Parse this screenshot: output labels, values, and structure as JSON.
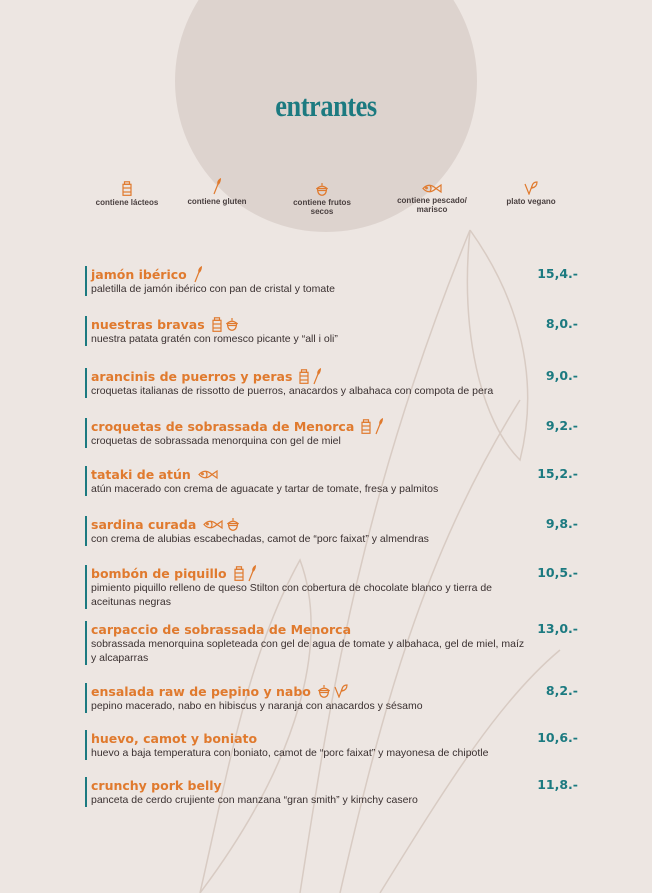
{
  "title": "entrantes",
  "colors": {
    "accent": "#e07a2e",
    "heading": "#1c7a80",
    "background": "#ede6e2"
  },
  "legend": [
    {
      "icon": "milk",
      "label": "contiene lácteos"
    },
    {
      "icon": "gluten",
      "label": "contiene gluten"
    },
    {
      "icon": "nuts",
      "label": "contiene frutos secos"
    },
    {
      "icon": "fish",
      "label": "contiene pescado/ marisco"
    },
    {
      "icon": "vegan",
      "label": "plato vegano"
    }
  ],
  "items": [
    {
      "name": "jamón ibérico",
      "icons": [
        "gluten"
      ],
      "price": "15,4.-",
      "desc": "paletilla de jamón ibérico con pan de cristal y tomate"
    },
    {
      "name": "nuestras bravas",
      "icons": [
        "milk",
        "nuts"
      ],
      "price": "8,0.-",
      "desc": "nuestra patata gratén con romesco picante y “all i oli”"
    },
    {
      "name": "arancinis de puerros y peras",
      "icons": [
        "milk",
        "gluten"
      ],
      "price": "9,0.-",
      "desc": "croquetas italianas de rissotto de puerros, anacardos y albahaca con compota de pera"
    },
    {
      "name": "croquetas de sobrassada de Menorca",
      "icons": [
        "milk",
        "gluten"
      ],
      "price": "9,2.-",
      "desc": "croquetas de sobrassada menorquina con gel de miel"
    },
    {
      "name": "tataki de atún",
      "icons": [
        "fish"
      ],
      "price": "15,2.-",
      "desc": "atún macerado con crema de aguacate y tartar de tomate, fresa y palmitos"
    },
    {
      "name": "sardina curada",
      "icons": [
        "fish",
        "nuts"
      ],
      "price": "9,8.-",
      "desc": "con crema de alubias escabechadas, camot de “porc faixat” y almendras"
    },
    {
      "name": "bombón de piquillo",
      "icons": [
        "milk",
        "gluten"
      ],
      "price": "10,5.-",
      "desc": "pimiento piquillo relleno de queso Stilton con cobertura de chocolate blanco y tierra de aceitunas negras"
    },
    {
      "name": "carpaccio de sobrassada de Menorca",
      "icons": [],
      "price": "13,0.-",
      "desc": "sobrassada menorquina sopleteada con gel de agua de tomate y albahaca, gel de miel, maíz y alcaparras"
    },
    {
      "name": "ensalada raw de pepino y nabo",
      "icons": [
        "nuts",
        "vegan"
      ],
      "price": "8,2.-",
      "desc": "pepino macerado, nabo en hibiscus y naranja con anacardos y sésamo"
    },
    {
      "name": "huevo, camot y boniato",
      "icons": [],
      "price": "10,6.-",
      "desc": "huevo a baja temperatura con boniato, camot de “porc faixat” y mayonesa de chipotle"
    },
    {
      "name": "crunchy pork belly",
      "icons": [],
      "price": "11,8.-",
      "desc": "panceta de cerdo crujiente con manzana “gran smith” y kimchy casero"
    }
  ]
}
